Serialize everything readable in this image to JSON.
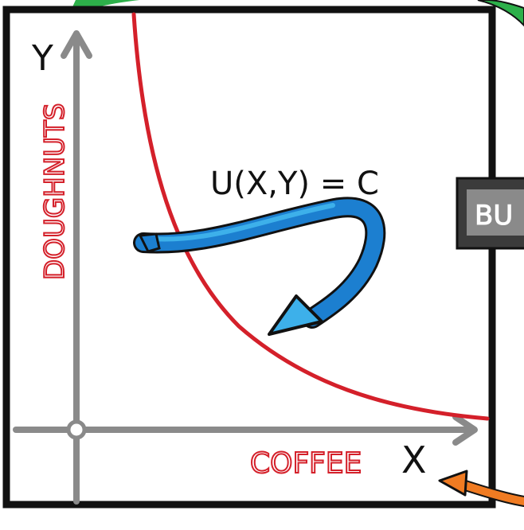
{
  "axes": {
    "y_letter": "Y",
    "x_letter": "X",
    "y_label": "DOUGHNUTS",
    "x_label": "COFFEE"
  },
  "equation": "U(X,Y) = C",
  "side_button_text": "BU",
  "colors": {
    "frame": "#111111",
    "axis": "#8a8a8a",
    "curve": "#d4202a",
    "label_red": "#d4202a",
    "arrow_blue_dark": "#1c7fd0",
    "arrow_blue_light": "#3db0ea",
    "green_arrow": "#2db04a",
    "orange_arrow": "#f07b22",
    "button_bg": "#3b3b3b",
    "button_face": "#8a8a8a"
  },
  "icons": {
    "origin": "origin-circle-icon",
    "pointer": "curved-blue-arrow-icon"
  }
}
